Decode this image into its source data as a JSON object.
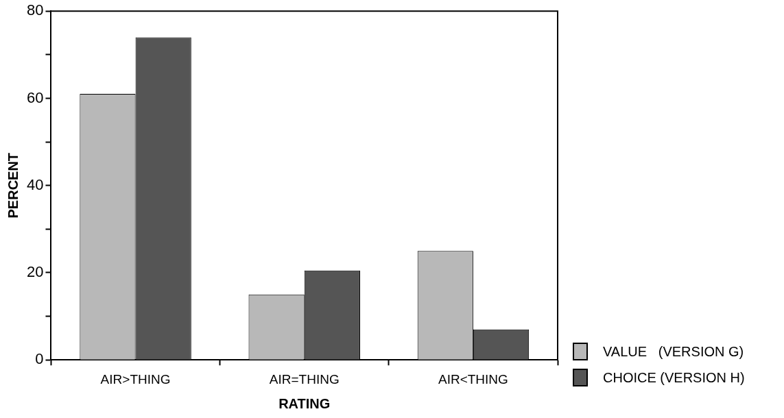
{
  "chart_data": {
    "type": "bar",
    "xlabel": "RATING",
    "ylabel": "PERCENT",
    "categories": [
      "AIR>THING",
      "AIR=THING",
      "AIR<THING"
    ],
    "series": [
      {
        "name": "VALUE   (VERSION G)",
        "color": "#b8b8b8",
        "values": [
          61,
          15,
          25
        ]
      },
      {
        "name": "CHOICE (VERSION H)",
        "color": "#555555",
        "values": [
          74,
          20.5,
          7
        ]
      }
    ],
    "ylim": [
      0,
      80
    ],
    "yticks": [
      0,
      {
        "value": 10,
        "label": null
      },
      20,
      {
        "value": 30,
        "label": null
      },
      40,
      {
        "value": 50,
        "label": null
      },
      60,
      {
        "value": 70,
        "label": null
      },
      80
    ],
    "grid": false,
    "legend": "bottom right"
  }
}
